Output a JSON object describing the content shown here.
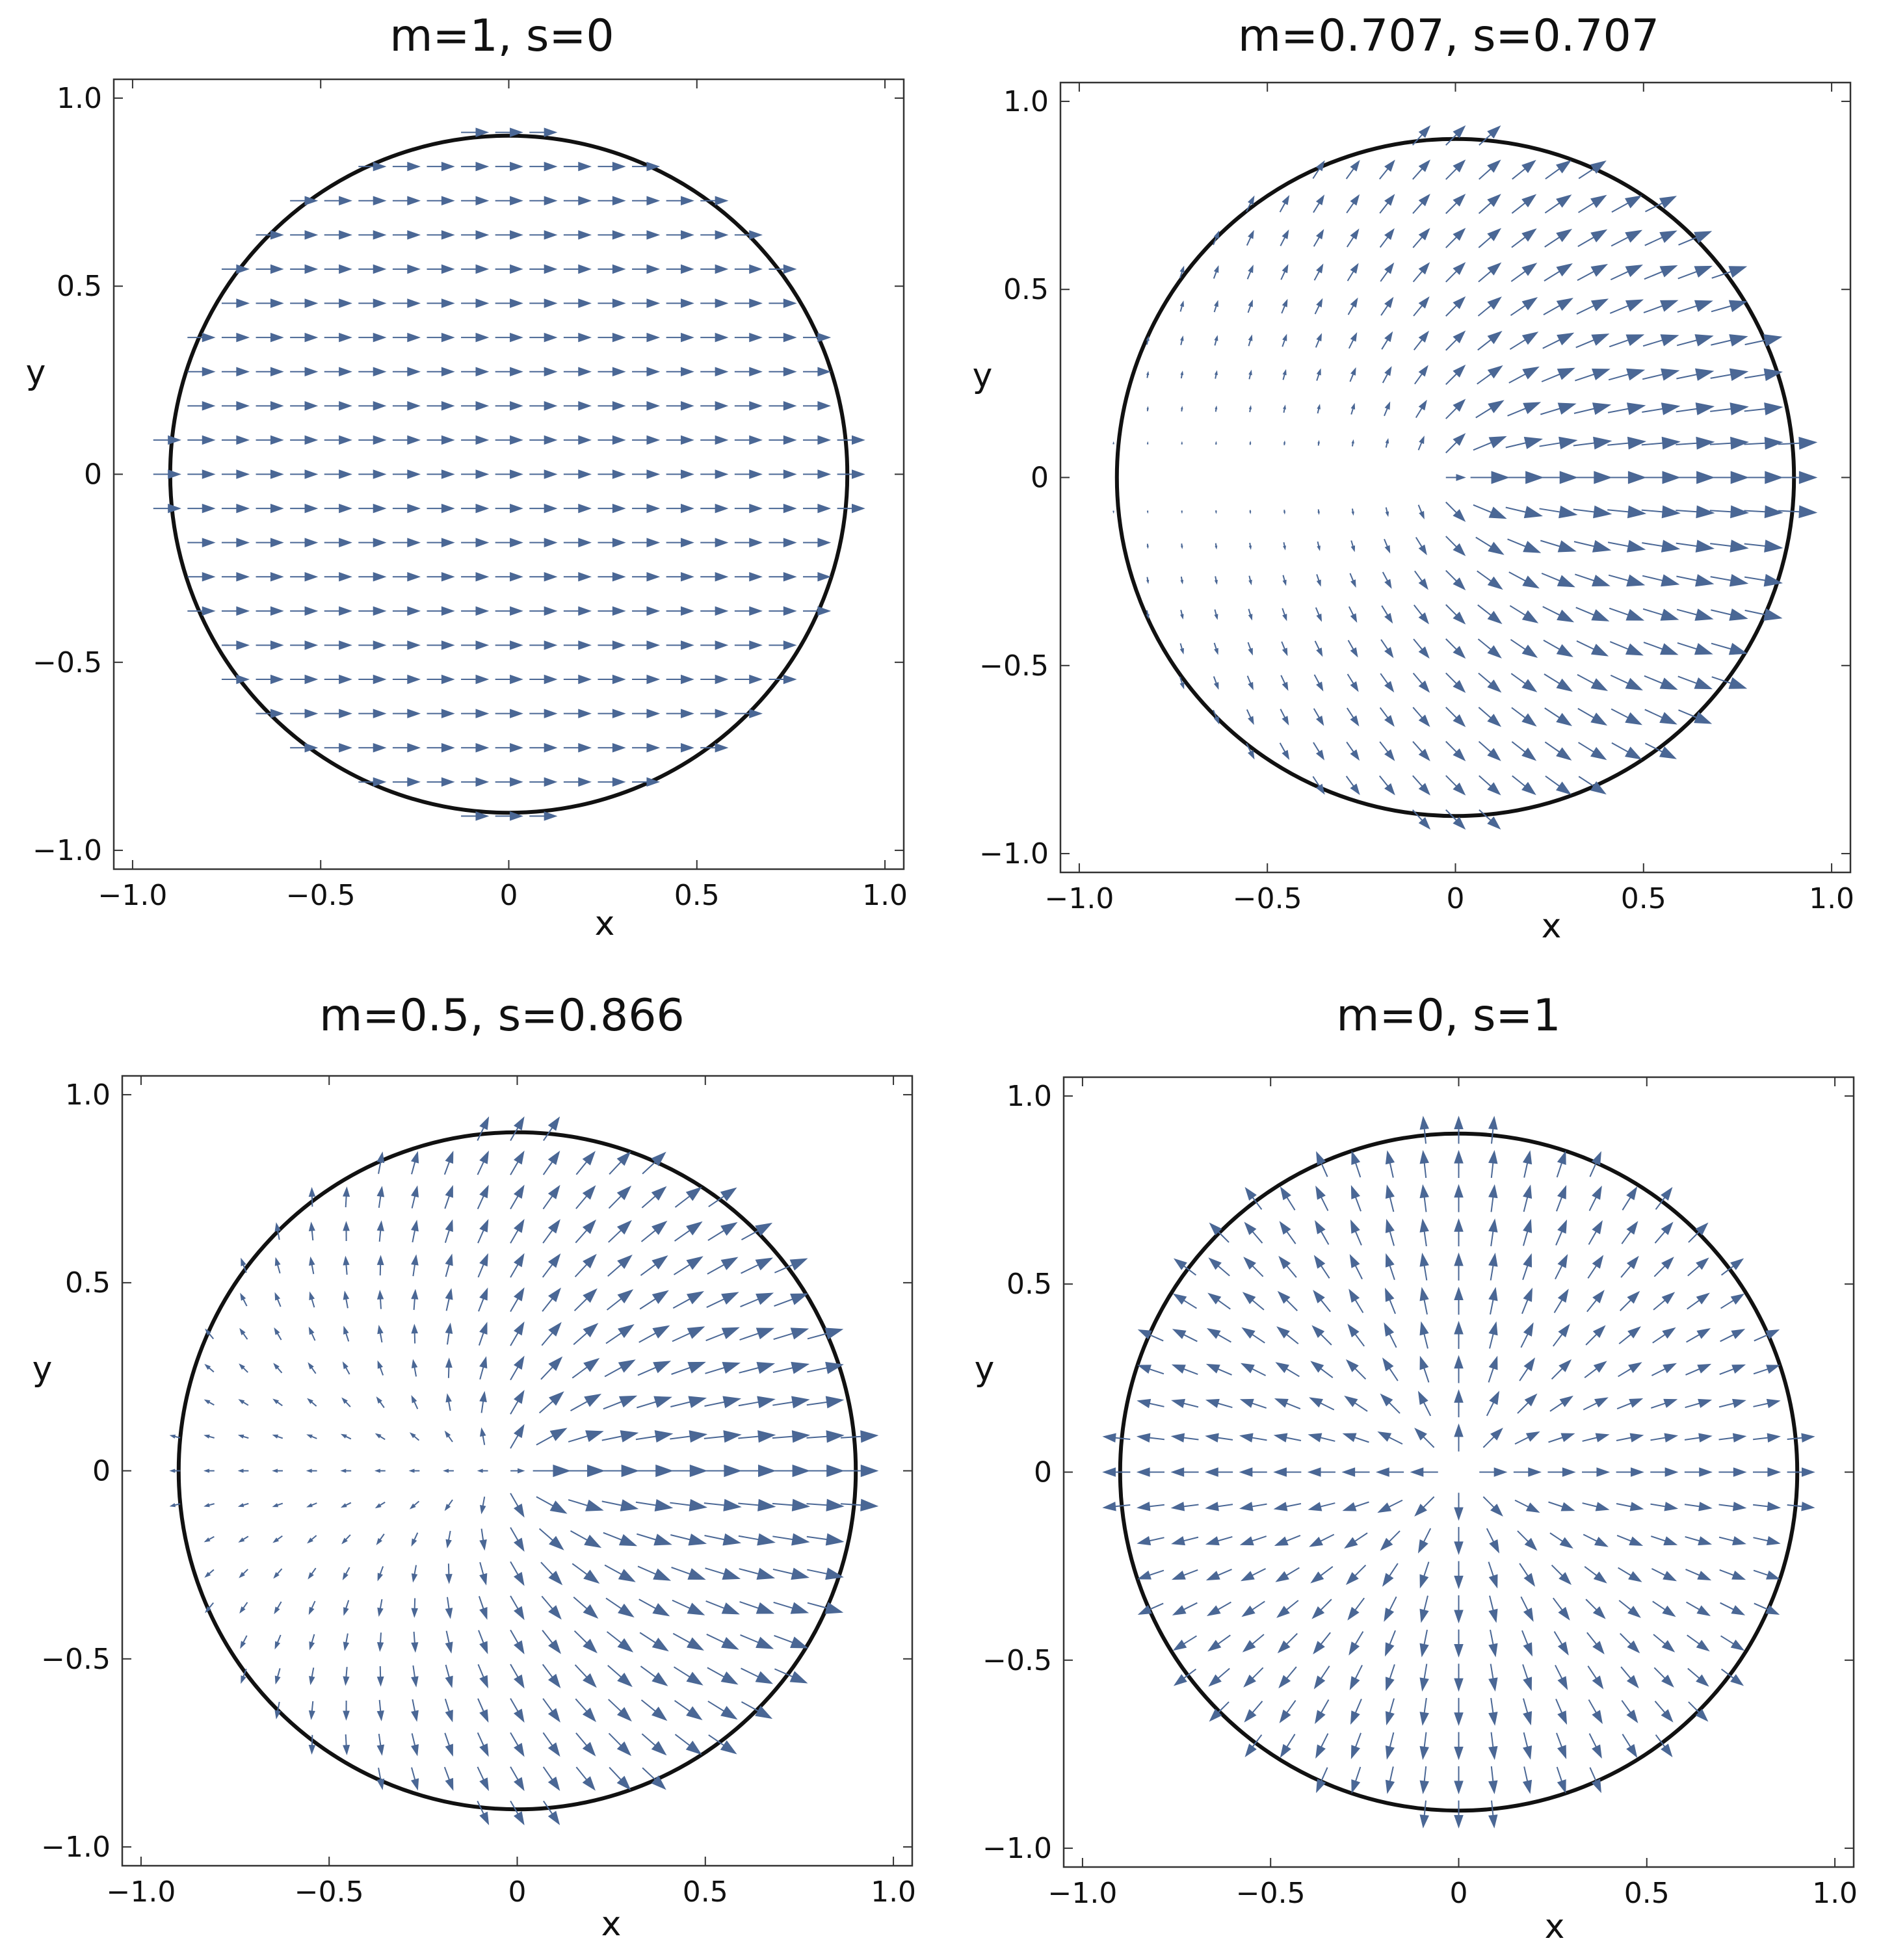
{
  "chart_data": [
    {
      "type": "quiver",
      "title": "m=1, s=0",
      "m": 1,
      "s": 0,
      "xlabel": "x",
      "ylabel": "y",
      "xlim": [
        -1.05,
        1.05
      ],
      "ylim": [
        -1.05,
        1.05
      ],
      "xticks": [
        "−1.0",
        "−0.5",
        "0",
        "0.5",
        "1.0"
      ],
      "yticks": [
        "1.0",
        "0.5",
        "0",
        "−0.5",
        "−1.0"
      ],
      "boundary_radius": 0.9,
      "grid": false,
      "color": "#4a6795"
    },
    {
      "type": "quiver",
      "title": "m=0.707, s=0.707",
      "m": 0.707,
      "s": 0.707,
      "xlabel": "x",
      "ylabel": "y",
      "xlim": [
        -1.05,
        1.05
      ],
      "ylim": [
        -1.05,
        1.05
      ],
      "xticks": [
        "−1.0",
        "−0.5",
        "0",
        "0.5",
        "1.0"
      ],
      "yticks": [
        "1.0",
        "0.5",
        "0",
        "−0.5",
        "−1.0"
      ],
      "boundary_radius": 0.9,
      "grid": false,
      "color": "#4a6795"
    },
    {
      "type": "quiver",
      "title": "m=0.5, s=0.866",
      "m": 0.5,
      "s": 0.866,
      "xlabel": "x",
      "ylabel": "y",
      "xlim": [
        -1.05,
        1.05
      ],
      "ylim": [
        -1.05,
        1.05
      ],
      "xticks": [
        "−1.0",
        "−0.5",
        "0",
        "0.5",
        "1.0"
      ],
      "yticks": [
        "1.0",
        "0.5",
        "0",
        "−0.5",
        "−1.0"
      ],
      "boundary_radius": 0.9,
      "grid": false,
      "color": "#4a6795"
    },
    {
      "type": "quiver",
      "title": "m=0, s=1",
      "m": 0,
      "s": 1,
      "xlabel": "x",
      "ylabel": "y",
      "xlim": [
        -1.05,
        1.05
      ],
      "ylim": [
        -1.05,
        1.05
      ],
      "xticks": [
        "−1.0",
        "−0.5",
        "0",
        "0.5",
        "1.0"
      ],
      "yticks": [
        "1.0",
        "0.5",
        "0",
        "−0.5",
        "−1.0"
      ],
      "boundary_radius": 0.9,
      "grid": false,
      "color": "#4a6795"
    }
  ]
}
